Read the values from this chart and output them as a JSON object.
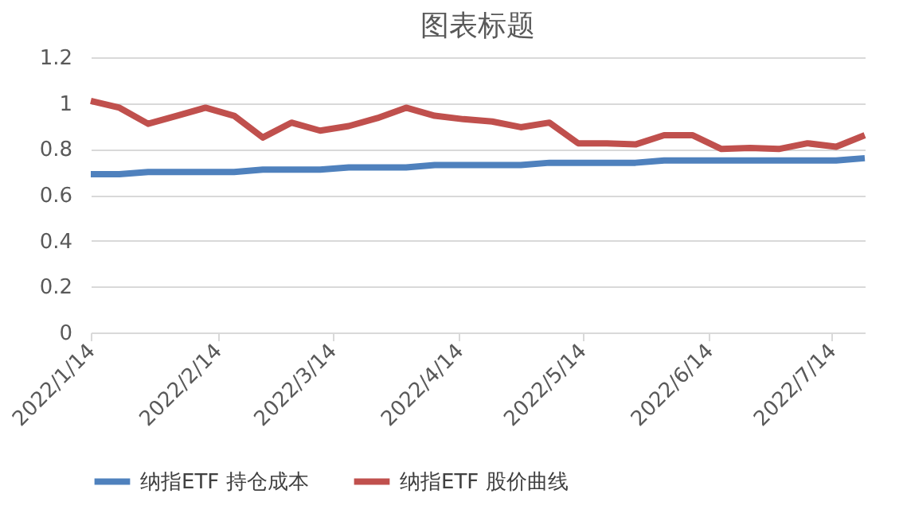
{
  "chart_data": {
    "type": "line",
    "title": "图表标题",
    "x": [
      "2022-01-14",
      "2022-01-21",
      "2022-01-28",
      "2022-02-04",
      "2022-02-11",
      "2022-02-18",
      "2022-02-25",
      "2022-03-04",
      "2022-03-11",
      "2022-03-18",
      "2022-03-25",
      "2022-04-01",
      "2022-04-08",
      "2022-04-15",
      "2022-04-22",
      "2022-04-29",
      "2022-05-06",
      "2022-05-13",
      "2022-05-20",
      "2022-05-27",
      "2022-06-03",
      "2022-06-10",
      "2022-06-17",
      "2022-06-24",
      "2022-07-01",
      "2022-07-08",
      "2022-07-15",
      "2022-07-22"
    ],
    "series": [
      {
        "name": "纳指ETF 持仓成本",
        "color": "#4f81bd",
        "values": [
          0.69,
          0.69,
          0.7,
          0.7,
          0.7,
          0.7,
          0.71,
          0.71,
          0.71,
          0.72,
          0.72,
          0.72,
          0.73,
          0.73,
          0.73,
          0.73,
          0.74,
          0.74,
          0.74,
          0.74,
          0.75,
          0.75,
          0.75,
          0.75,
          0.75,
          0.75,
          0.75,
          0.76
        ]
      },
      {
        "name": "纳指ETF 股价曲线",
        "color": "#c0504d",
        "values": [
          1.01,
          0.98,
          0.91,
          0.945,
          0.98,
          0.945,
          0.85,
          0.915,
          0.88,
          0.9,
          0.935,
          0.98,
          0.945,
          0.93,
          0.92,
          0.895,
          0.915,
          0.825,
          0.825,
          0.82,
          0.86,
          0.86,
          0.8,
          0.805,
          0.8,
          0.825,
          0.81,
          0.86
        ]
      }
    ],
    "xlim": [
      "2022-01-14",
      "2022-07-22"
    ],
    "xticks": [
      {
        "value": "2022-01-14",
        "label": "2022/1/14"
      },
      {
        "value": "2022-02-14",
        "label": "2022/2/14"
      },
      {
        "value": "2022-03-14",
        "label": "2022/3/14"
      },
      {
        "value": "2022-04-14",
        "label": "2022/4/14"
      },
      {
        "value": "2022-05-14",
        "label": "2022/5/14"
      },
      {
        "value": "2022-06-14",
        "label": "2022/6/14"
      },
      {
        "value": "2022-07-14",
        "label": "2022/7/14"
      }
    ],
    "ylim": [
      0,
      1.2
    ],
    "yticks": [
      0,
      0.2,
      0.4,
      0.6,
      0.8,
      1,
      1.2
    ],
    "grid": "y",
    "legend": "bottom",
    "marker": "none",
    "line_style": "solid"
  }
}
